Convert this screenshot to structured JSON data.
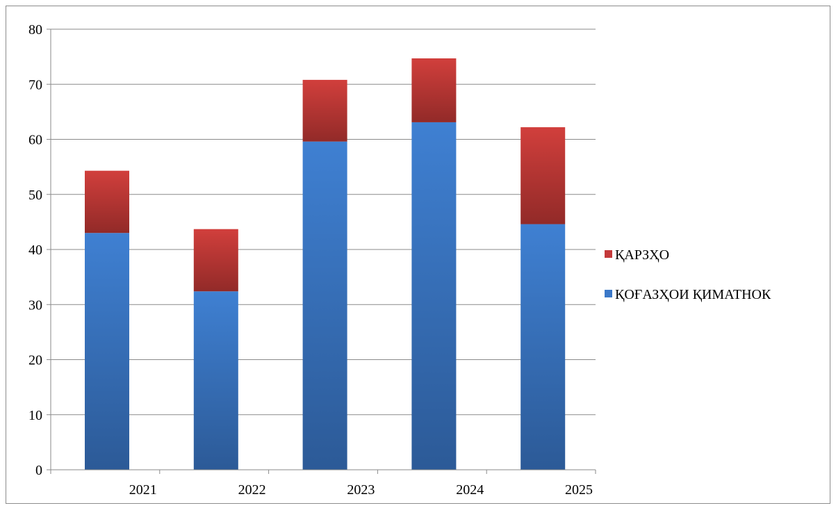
{
  "chart_data": {
    "type": "bar",
    "stacked": true,
    "categories": [
      "2021",
      "2022",
      "2023",
      "2024",
      "2025"
    ],
    "series": [
      {
        "name": "ҚОҒАЗҲОИ ҚИМАТНОК",
        "values": [
          43.0,
          32.4,
          59.6,
          63.1,
          44.6
        ],
        "color": "#3b78c8"
      },
      {
        "name": "ҚАРЗҲО",
        "values": [
          11.3,
          11.3,
          11.2,
          11.6,
          17.6
        ],
        "color": "#c4393a"
      }
    ],
    "ylim": [
      0,
      80
    ],
    "yticks": [
      0,
      10,
      20,
      30,
      40,
      50,
      60,
      70,
      80
    ],
    "grid": true,
    "legend_position": "right",
    "title": "",
    "xlabel": "",
    "ylabel": ""
  }
}
